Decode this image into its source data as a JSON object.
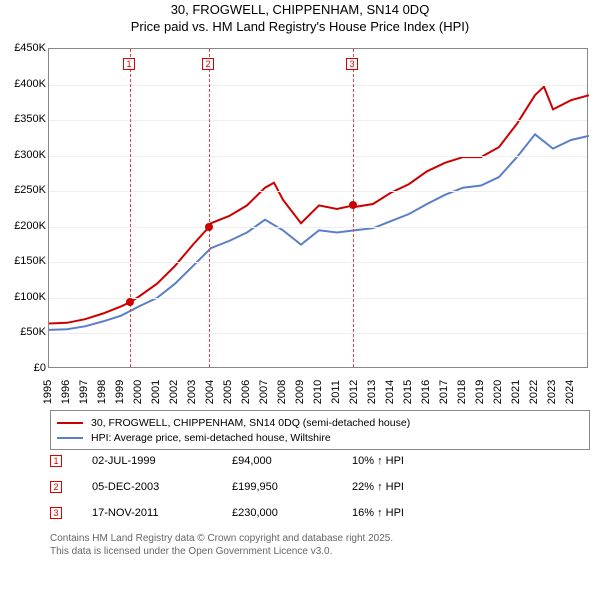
{
  "title": {
    "line1": "30, FROGWELL, CHIPPENHAM, SN14 0DQ",
    "line2": "Price paid vs. HM Land Registry's House Price Index (HPI)"
  },
  "chart": {
    "type": "line",
    "background_color": "#ffffff",
    "border_color": "#888888",
    "grid_color": "#eeeeee",
    "ylim": [
      0,
      450000
    ],
    "ytick_step": 50000,
    "yticks": [
      "£0",
      "£50K",
      "£100K",
      "£150K",
      "£200K",
      "£250K",
      "£300K",
      "£350K",
      "£400K",
      "£450K"
    ],
    "xlim": [
      1995,
      2025
    ],
    "xticks": [
      "1995",
      "1996",
      "1997",
      "1998",
      "1999",
      "2000",
      "2001",
      "2002",
      "2003",
      "2004",
      "2005",
      "2006",
      "2007",
      "2008",
      "2009",
      "2010",
      "2011",
      "2012",
      "2013",
      "2014",
      "2015",
      "2016",
      "2017",
      "2018",
      "2019",
      "2020",
      "2021",
      "2022",
      "2023",
      "2024"
    ],
    "label_fontsize": 11,
    "line_width": 2,
    "series": [
      {
        "name": "30, FROGWELL, CHIPPENHAM, SN14 0DQ (semi-detached house)",
        "color": "#cc0000",
        "x": [
          1995,
          1996,
          1997,
          1998,
          1999,
          1999.5,
          2000,
          2001,
          2002,
          2003,
          2003.9,
          2004,
          2005,
          2006,
          2007,
          2007.5,
          2008,
          2009,
          2010,
          2011,
          2011.9,
          2012,
          2013,
          2014,
          2015,
          2016,
          2017,
          2018,
          2019,
          2020,
          2021,
          2022,
          2022.5,
          2023,
          2024,
          2025
        ],
        "y": [
          64000,
          65000,
          70000,
          78000,
          88000,
          94000,
          102000,
          120000,
          145000,
          175000,
          199950,
          205000,
          215000,
          230000,
          255000,
          262000,
          238000,
          205000,
          230000,
          225000,
          230000,
          228000,
          232000,
          248000,
          260000,
          278000,
          290000,
          298000,
          298000,
          312000,
          345000,
          385000,
          397000,
          365000,
          378000,
          385000
        ]
      },
      {
        "name": "HPI: Average price, semi-detached house, Wiltshire",
        "color": "#5b7fc7",
        "x": [
          1995,
          1996,
          1997,
          1998,
          1999,
          2000,
          2001,
          2002,
          2003,
          2004,
          2005,
          2006,
          2007,
          2008,
          2009,
          2010,
          2011,
          2012,
          2013,
          2014,
          2015,
          2016,
          2017,
          2018,
          2019,
          2020,
          2021,
          2022,
          2023,
          2024,
          2025
        ],
        "y": [
          55000,
          56000,
          60000,
          67000,
          75000,
          88000,
          100000,
          120000,
          145000,
          170000,
          180000,
          192000,
          210000,
          195000,
          175000,
          195000,
          192000,
          195000,
          198000,
          208000,
          218000,
          232000,
          245000,
          255000,
          258000,
          270000,
          298000,
          330000,
          310000,
          322000,
          328000
        ]
      }
    ],
    "vlines": [
      {
        "x": 1999.5,
        "label": "1",
        "color": "#dd4444"
      },
      {
        "x": 2003.9,
        "label": "2",
        "color": "#dd4444"
      },
      {
        "x": 2011.9,
        "label": "3",
        "color": "#dd4444"
      }
    ],
    "price_points": [
      {
        "x": 1999.5,
        "y": 94000,
        "color": "#cc0000"
      },
      {
        "x": 2003.9,
        "y": 199950,
        "color": "#cc0000"
      },
      {
        "x": 2011.9,
        "y": 230000,
        "color": "#cc0000"
      }
    ]
  },
  "legend": {
    "items": [
      {
        "color": "#cc0000",
        "label": "30, FROGWELL, CHIPPENHAM, SN14 0DQ (semi-detached house)"
      },
      {
        "color": "#5b7fc7",
        "label": "HPI: Average price, semi-detached house, Wiltshire"
      }
    ]
  },
  "price_paid": [
    {
      "marker": "1",
      "date": "02-JUL-1999",
      "price": "£94,000",
      "delta": "10% ↑ HPI"
    },
    {
      "marker": "2",
      "date": "05-DEC-2003",
      "price": "£199,950",
      "delta": "22% ↑ HPI"
    },
    {
      "marker": "3",
      "date": "17-NOV-2011",
      "price": "£230,000",
      "delta": "16% ↑ HPI"
    }
  ],
  "footer": {
    "line1": "Contains HM Land Registry data © Crown copyright and database right 2025.",
    "line2": "This data is licensed under the Open Government Licence v3.0."
  }
}
